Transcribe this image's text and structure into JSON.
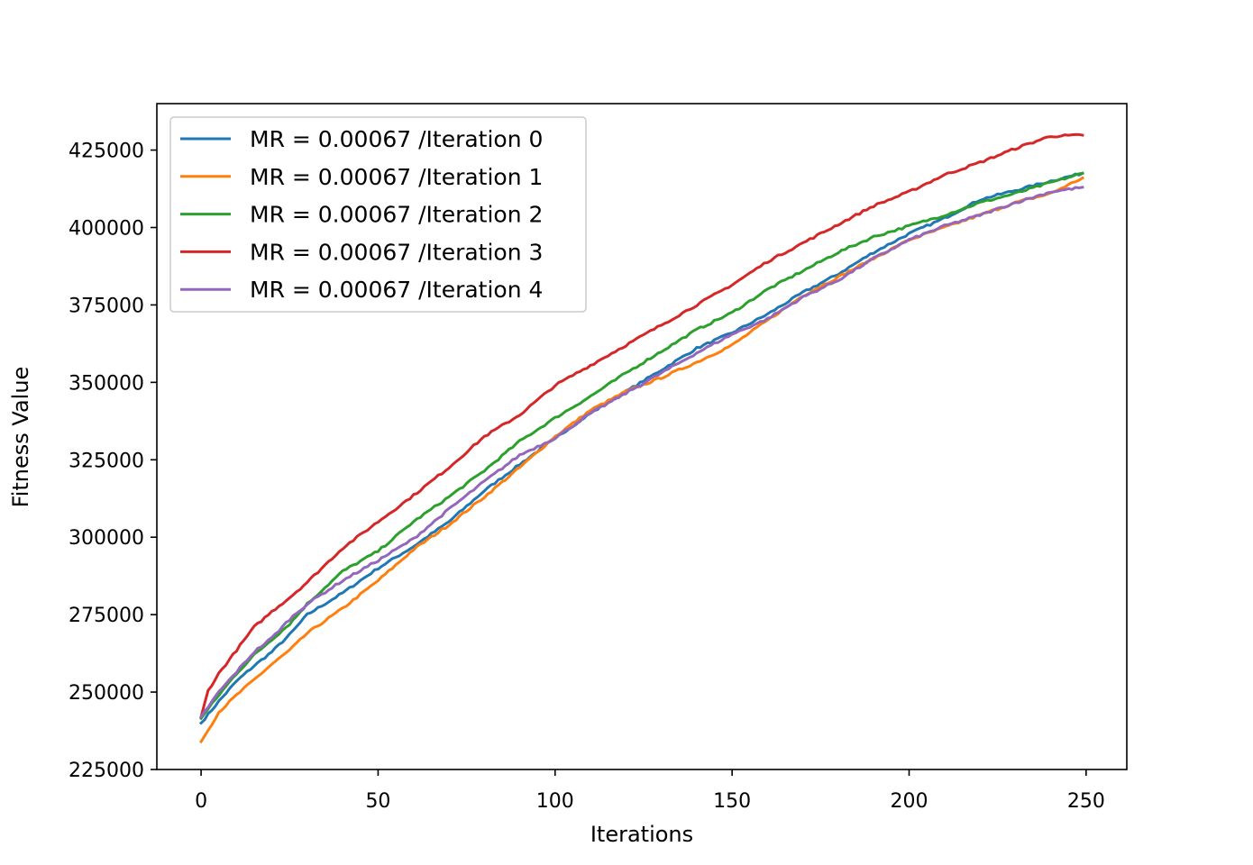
{
  "chart_data": {
    "type": "line",
    "title": "",
    "xlabel": "Iterations",
    "ylabel": "Fitness Value",
    "xlim": [
      -12.5,
      261.5
    ],
    "ylim": [
      225000,
      440000
    ],
    "xticks": [
      0,
      50,
      100,
      150,
      200,
      250
    ],
    "yticks": [
      225000,
      250000,
      275000,
      300000,
      325000,
      350000,
      375000,
      400000,
      425000
    ],
    "xtick_labels": [
      "0",
      "50",
      "100",
      "150",
      "200",
      "250"
    ],
    "ytick_labels": [
      "225000",
      "250000",
      "275000",
      "300000",
      "325000",
      "350000",
      "375000",
      "400000",
      "425000"
    ],
    "grid": false,
    "legend_position": "upper-left",
    "x_range": [
      0,
      249
    ],
    "series": [
      {
        "name": "MR = 0.00067 /Iteration 0",
        "color": "#1f77b4",
        "x": [
          0,
          5,
          10,
          15,
          20,
          25,
          30,
          40,
          50,
          60,
          70,
          80,
          90,
          100,
          110,
          120,
          130,
          140,
          150,
          160,
          170,
          180,
          190,
          200,
          210,
          220,
          230,
          240,
          249
        ],
        "y": [
          240000,
          247000,
          253500,
          258500,
          263000,
          268500,
          275000,
          282000,
          290000,
          297000,
          305000,
          315000,
          323500,
          332000,
          340000,
          347000,
          354000,
          361000,
          366000,
          372000,
          379000,
          385000,
          392000,
          398000,
          403000,
          409000,
          412000,
          415000,
          417500
        ]
      },
      {
        "name": "MR = 0.00067 /Iteration 1",
        "color": "#ff7f0e",
        "x": [
          0,
          5,
          10,
          15,
          20,
          25,
          30,
          40,
          50,
          60,
          70,
          80,
          90,
          100,
          110,
          120,
          130,
          140,
          150,
          160,
          170,
          180,
          190,
          200,
          210,
          220,
          230,
          240,
          249
        ],
        "y": [
          234000,
          243500,
          249000,
          254000,
          259000,
          263500,
          269000,
          277000,
          286000,
          296000,
          304000,
          313000,
          322500,
          332500,
          341000,
          347000,
          351500,
          356500,
          362000,
          370000,
          378000,
          384000,
          390000,
          396000,
          400000,
          404000,
          408000,
          411000,
          416000
        ]
      },
      {
        "name": "MR = 0.00067 /Iteration 2",
        "color": "#2ca02c",
        "x": [
          0,
          5,
          10,
          15,
          20,
          25,
          30,
          40,
          50,
          60,
          70,
          80,
          90,
          100,
          110,
          120,
          130,
          140,
          150,
          160,
          170,
          180,
          190,
          200,
          210,
          220,
          230,
          240,
          249
        ],
        "y": [
          241500,
          249000,
          256000,
          262000,
          267000,
          272000,
          278500,
          289000,
          295500,
          305000,
          313000,
          321500,
          331000,
          338500,
          345500,
          353000,
          360000,
          367000,
          372500,
          380000,
          386000,
          392000,
          397000,
          400500,
          404000,
          408000,
          411000,
          414500,
          417500
        ]
      },
      {
        "name": "MR = 0.00067 /Iteration 3",
        "color": "#d62728",
        "x": [
          0,
          2,
          5,
          10,
          15,
          20,
          25,
          30,
          40,
          50,
          60,
          70,
          80,
          90,
          100,
          110,
          120,
          130,
          140,
          150,
          160,
          170,
          180,
          190,
          200,
          210,
          220,
          230,
          240,
          249
        ],
        "y": [
          242000,
          250500,
          256000,
          263500,
          271000,
          276000,
          280500,
          285500,
          296500,
          305000,
          313500,
          322500,
          332500,
          339500,
          349000,
          355500,
          362000,
          368500,
          375000,
          381500,
          389000,
          395000,
          401000,
          407000,
          411500,
          417000,
          421000,
          425500,
          429500,
          429800
        ]
      },
      {
        "name": "MR = 0.00067 /Iteration 4",
        "color": "#9467bd",
        "x": [
          0,
          5,
          10,
          15,
          20,
          25,
          30,
          40,
          50,
          60,
          70,
          80,
          90,
          100,
          110,
          120,
          130,
          140,
          150,
          160,
          170,
          180,
          190,
          200,
          210,
          220,
          230,
          240,
          249
        ],
        "y": [
          242000,
          250000,
          256500,
          263000,
          267500,
          273500,
          278500,
          286000,
          292500,
          299500,
          309000,
          318000,
          326500,
          332000,
          340000,
          346500,
          353000,
          359500,
          365500,
          370500,
          377500,
          383000,
          390000,
          396000,
          400500,
          404000,
          408000,
          411500,
          413000
        ]
      }
    ]
  }
}
